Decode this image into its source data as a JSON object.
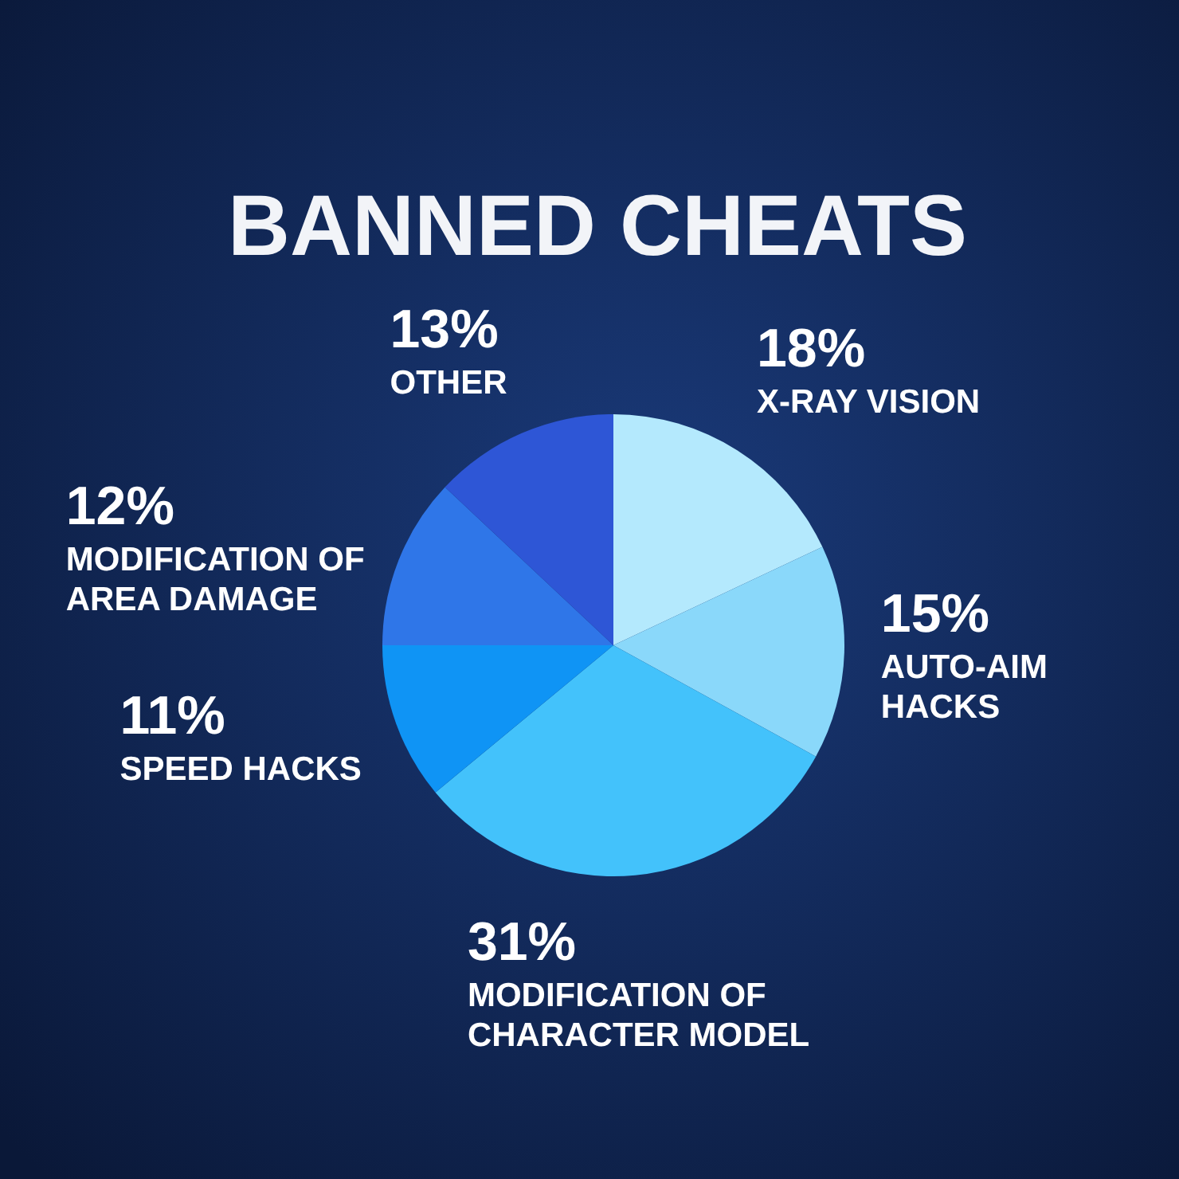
{
  "chart_data": {
    "type": "pie",
    "title": "BANNED CHEATS",
    "categories": [
      "X-RAY VISION",
      "AUTO-AIM HACKS",
      "MODIFICATION OF CHARACTER MODEL",
      "SPEED HACKS",
      "MODIFICATION OF AREA DAMAGE",
      "OTHER"
    ],
    "values": [
      18,
      15,
      31,
      11,
      12,
      13
    ],
    "value_labels": [
      "18%",
      "15%",
      "31%",
      "11%",
      "12%",
      "13%"
    ],
    "colors": [
      "#b4e9fd",
      "#8ad8fa",
      "#43c2fb",
      "#0f94f5",
      "#2f76e8",
      "#2e56d6"
    ]
  }
}
